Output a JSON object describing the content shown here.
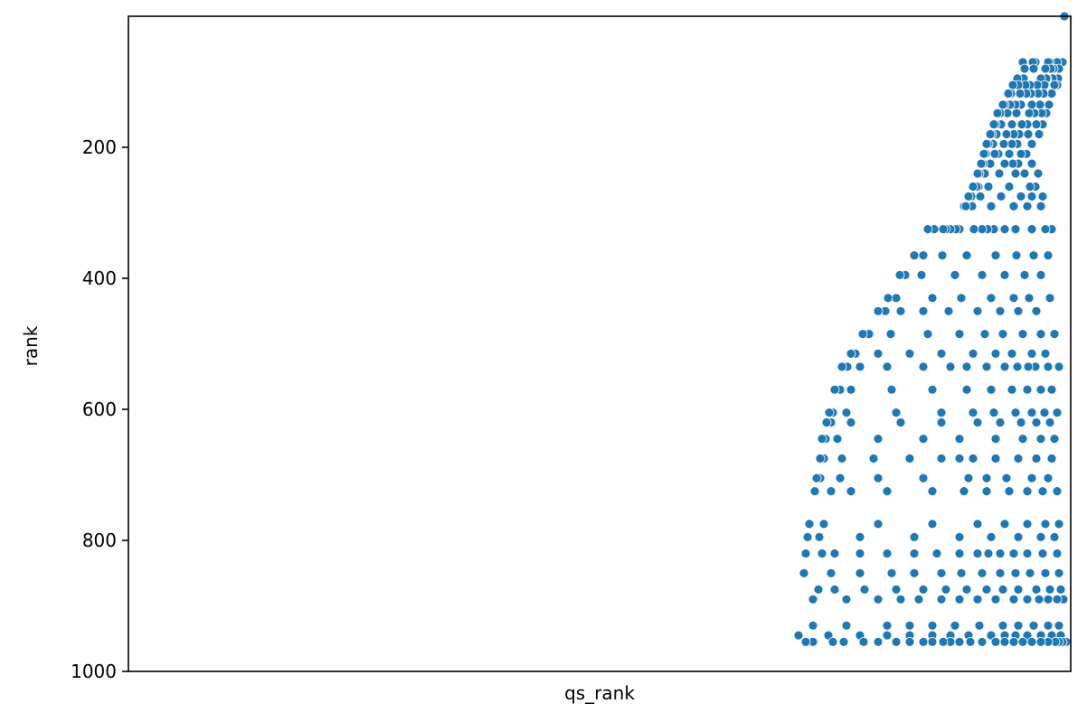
{
  "chart_data": {
    "type": "scatter",
    "title": "",
    "xlabel": "qs_rank",
    "ylabel": "rank",
    "x_axis_inverted": true,
    "x_ticks": [],
    "y_axis_inverted": true,
    "ylim": [
      0,
      1000
    ],
    "y_ticks": [
      200,
      400,
      600,
      800,
      1000
    ],
    "grid": false,
    "legend": "none",
    "marker_color": "#1f77b4",
    "marker_edge_color": "#ffffff",
    "rows": [
      {
        "y": 0,
        "x": [
          0,
          1,
          2,
          3,
          4
        ]
      },
      {
        "y": 70,
        "x": [
          6,
          12,
          20,
          22,
          36,
          39,
          50
        ]
      },
      {
        "y": 80,
        "x": [
          10,
          16,
          19,
          25,
          38,
          48
        ]
      },
      {
        "y": 95,
        "x": [
          11,
          17,
          23,
          24,
          30,
          49,
          56
        ]
      },
      {
        "y": 105,
        "x": [
          12,
          15,
          26,
          34,
          42,
          47,
          55,
          61
        ]
      },
      {
        "y": 118,
        "x": [
          18,
          27,
          33,
          41,
          46,
          53,
          63,
          66
        ]
      },
      {
        "y": 135,
        "x": [
          21,
          31,
          40,
          52,
          58,
          64,
          70,
          72
        ]
      },
      {
        "y": 148,
        "x": [
          24,
          29,
          37,
          43,
          57,
          67,
          75,
          78
        ]
      },
      {
        "y": 165,
        "x": [
          28,
          35,
          45,
          51,
          62,
          74,
          80,
          82
        ]
      },
      {
        "y": 180,
        "x": [
          32,
          44,
          54,
          60,
          68,
          79,
          84,
          86
        ]
      },
      {
        "y": 195,
        "x": [
          40,
          56,
          62,
          71,
          83,
          88,
          90
        ]
      },
      {
        "y": 210,
        "x": [
          46,
          52,
          65,
          77,
          81,
          91,
          93
        ]
      },
      {
        "y": 225,
        "x": [
          40,
          55,
          61,
          70,
          86,
          94,
          96
        ]
      },
      {
        "y": 240,
        "x": [
          33,
          48,
          58,
          76,
          92,
          98,
          100
        ]
      },
      {
        "y": 260,
        "x": [
          36,
          42,
          65,
          88,
          99,
          101,
          105
        ]
      },
      {
        "y": 275,
        "x": [
          28,
          40,
          52,
          74,
          97,
          107,
          110
        ]
      },
      {
        "y": 290,
        "x": [
          30,
          45,
          60,
          85,
          106,
          115,
          113
        ]
      },
      {
        "y": 325,
        "x": [
          18,
          25,
          40,
          58,
          70,
          82,
          89,
          95,
          104,
          120,
          124,
          130,
          135,
          138,
          148,
          155
        ]
      },
      {
        "y": 365,
        "x": [
          22,
          38,
          57,
          80,
          112,
          139,
          160,
          170
        ]
      },
      {
        "y": 395,
        "x": [
          30,
          48,
          70,
          95,
          125,
          162,
          180,
          186
        ]
      },
      {
        "y": 430,
        "x": [
          20,
          43,
          60,
          85,
          118,
          150,
          190,
          199
        ]
      },
      {
        "y": 450,
        "x": [
          35,
          55,
          75,
          100,
          132,
          160,
          185,
          202,
          210
        ]
      },
      {
        "y": 485,
        "x": [
          15,
          30,
          50,
          72,
          92,
          120,
          155,
          196,
          220,
          227
        ]
      },
      {
        "y": 515,
        "x": [
          25,
          40,
          62,
          80,
          105,
          140,
          175,
          210,
          235,
          240
        ]
      },
      {
        "y": 535,
        "x": [
          10,
          22,
          36,
          44,
          56,
          70,
          90,
          112,
          130,
          160,
          200,
          230,
          244,
          250
        ]
      },
      {
        "y": 570,
        "x": [
          18,
          30,
          45,
          62,
          85,
          112,
          150,
          195,
          240,
          252,
          258
        ]
      },
      {
        "y": 605,
        "x": [
          12,
          26,
          40,
          58,
          82,
          105,
          140,
          190,
          245,
          260,
          264
        ]
      },
      {
        "y": 620,
        "x": [
          20,
          35,
          52,
          75,
          100,
          140,
          185,
          240,
          262,
          267
        ]
      },
      {
        "y": 645,
        "x": [
          15,
          30,
          50,
          80,
          120,
          160,
          210,
          255,
          268,
          272
        ]
      },
      {
        "y": 675,
        "x": [
          18,
          35,
          55,
          80,
          105,
          120,
          140,
          175,
          215,
          250,
          270,
          274
        ]
      },
      {
        "y": 705,
        "x": [
          22,
          40,
          68,
          90,
          110,
          160,
          210,
          252,
          274,
          278
        ]
      },
      {
        "y": 725,
        "x": [
          12,
          28,
          45,
          65,
          90,
          115,
          150,
          200,
          240,
          262,
          280
        ]
      },
      {
        "y": 775,
        "x": [
          10,
          25,
          45,
          70,
          100,
          150,
          210,
          270,
          286
        ]
      },
      {
        "y": 795,
        "x": [
          15,
          30,
          55,
          85,
          120,
          170,
          230,
          275,
          288
        ]
      },
      {
        "y": 820,
        "x": [
          12,
          28,
          45,
          60,
          75,
          88,
          100,
          120,
          145,
          170,
          200,
          230,
          258,
          272,
          290
        ]
      },
      {
        "y": 850,
        "x": [
          10,
          25,
          42,
          58,
          75,
          95,
          118,
          140,
          170,
          195,
          230,
          262,
          292
        ]
      },
      {
        "y": 875,
        "x": [
          8,
          20,
          35,
          55,
          72,
          90,
          112,
          135,
          160,
          190,
          225,
          258,
          276
        ]
      },
      {
        "y": 890,
        "x": [
          5,
          12,
          22,
          32,
          45,
          60,
          80,
          100,
          120,
          140,
          165,
          185,
          210,
          245,
          282
        ]
      },
      {
        "y": 930,
        "x": [
          10,
          22,
          38,
          55,
          72,
          98,
          125,
          150,
          175,
          200,
          245,
          282
        ]
      },
      {
        "y": 945,
        "x": [
          8,
          18,
          30,
          45,
          58,
          70,
          85,
          110,
          130,
          150,
          175,
          200,
          230,
          265,
          298
        ]
      },
      {
        "y": 955,
        "x": [
          2,
          6,
          10,
          14,
          22,
          30,
          40,
          50,
          60,
          70,
          80,
          95,
          108,
          120,
          130,
          138,
          150,
          160,
          175,
          190,
          210,
          226,
          248,
          260,
          282,
          290
        ]
      }
    ]
  }
}
